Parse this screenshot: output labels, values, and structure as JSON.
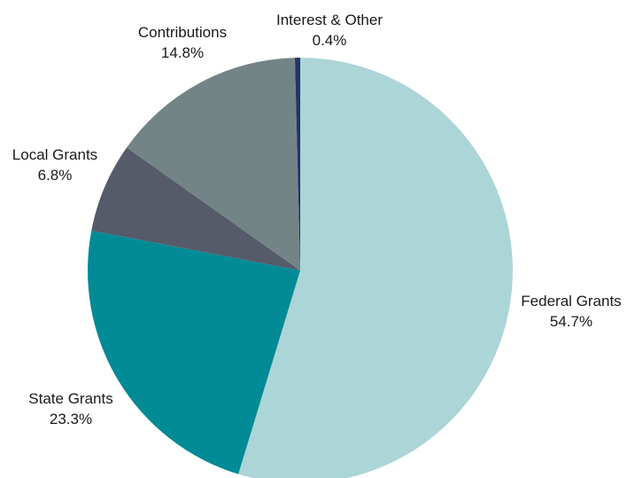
{
  "chart_data": {
    "type": "pie",
    "title": "",
    "start_angle_deg": 0,
    "direction": "clockwise",
    "slices": [
      {
        "label": "Federal Grants",
        "value": 54.7,
        "value_label": "54.7%",
        "color": "#acd5d7"
      },
      {
        "label": "State Grants",
        "value": 23.3,
        "value_label": "23.3%",
        "color": "#008b96"
      },
      {
        "label": "Local Grants",
        "value": 6.8,
        "value_label": "6.8%",
        "color": "#555b68"
      },
      {
        "label": "Contributions",
        "value": 14.8,
        "value_label": "14.8%",
        "color": "#738487"
      },
      {
        "label": "Interest & Other",
        "value": 0.4,
        "value_label": "0.4%",
        "color": "#243466"
      }
    ]
  }
}
